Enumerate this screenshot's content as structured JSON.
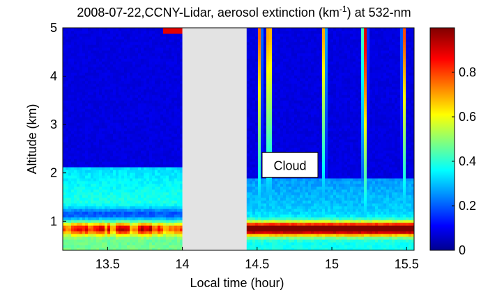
{
  "chart_data": {
    "type": "heatmap",
    "title_main": "2008-07-22,CCNY-Lidar, aerosol extinction (km",
    "title_sup": "-1",
    "title_end": ") at 532-nm",
    "xlabel": "Local time (hour)",
    "ylabel": "Altitude (km)",
    "xlim": [
      13.2,
      15.55
    ],
    "ylim": [
      0.4,
      5.0
    ],
    "x_ticks": [
      13.5,
      14,
      14.5,
      15,
      15.5
    ],
    "x_tick_labels": [
      "13.5",
      "14",
      "14.5",
      "15",
      "15.5"
    ],
    "y_ticks": [
      1,
      2,
      3,
      4,
      5
    ],
    "y_tick_labels": [
      "1",
      "2",
      "3",
      "4",
      "5"
    ],
    "colorbar": {
      "range": [
        0,
        1.0
      ],
      "ticks": [
        0,
        0.2,
        0.4,
        0.6,
        0.8
      ],
      "tick_labels": [
        "0",
        "0.2",
        "0.4",
        "0.6",
        "0.8"
      ],
      "colormap": "jet"
    },
    "no_data_interval": [
      14.0,
      14.43
    ],
    "no_data_color": "#e3e3e3",
    "annotation": {
      "text": "Cloud",
      "x": 14.72,
      "y": 2.15
    },
    "layers": {
      "boundary_layer_top_left_km": 2.1,
      "boundary_layer_top_right_km": 1.9,
      "aerosol_peak_left_km": 0.85,
      "aerosol_peak_right_km": 0.85,
      "aerosol_peak_value_right": 1.0,
      "cloud_plumes_hour": [
        14.52,
        14.58,
        14.95,
        15.22,
        15.48
      ],
      "cloud_top_km": 4.8
    }
  }
}
